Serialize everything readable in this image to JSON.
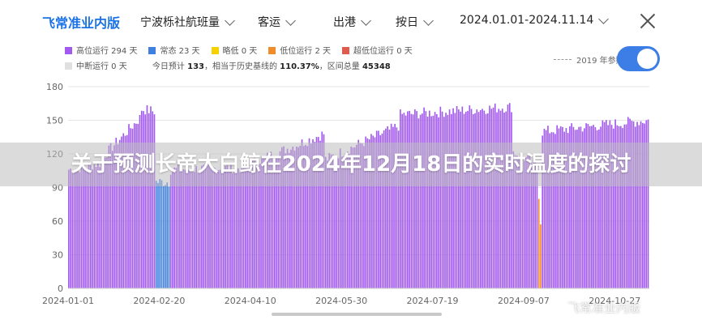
{
  "header": {
    "app_title": "飞常准业内版",
    "company": "宁波栎社航班量",
    "flight_type": "客运",
    "direction": "出港",
    "granularity": "按日",
    "date_range": "2024.01.01-2024.11.14"
  },
  "legend": {
    "items": [
      {
        "label": "高位运行 294 天",
        "color": "#a259f0"
      },
      {
        "label": "常态 23 天",
        "color": "#3f7fe0"
      },
      {
        "label": "略低 0 天",
        "color": "#f5d100"
      },
      {
        "label": "低位运行 2 天",
        "color": "#f08c2a"
      },
      {
        "label": "超低位运行 0 天",
        "color": "#e05a4e"
      }
    ],
    "interrupted": "中断运行 0 天",
    "forecast_label": "今日预计",
    "forecast_value": "133",
    "history_label": "相当于历史基线的",
    "history_value": "110.37%",
    "total_label": "区间总量",
    "total_value": "45348",
    "reference_label": "2019 年参照"
  },
  "toggle_on": true,
  "banner_text": "关于预测长帝大白鲸在2024年12月18日的实时温度的探讨",
  "watermark": "飞常准业内版",
  "chart_data": {
    "type": "bar",
    "ylim": [
      0,
      180
    ],
    "yticks": [
      0,
      30,
      60,
      90,
      120,
      150,
      180
    ],
    "xticks": [
      "2024-01-01",
      "2024-02-20",
      "2024-04-10",
      "2024-05-30",
      "2024-07-19",
      "2024-09-07",
      "2024-10-27"
    ],
    "start_date": "2024-01-01",
    "categories_note": "daily, 2024-01-01 to 2024-11-14",
    "segments": [
      {
        "from": "2024-01-01",
        "to": "2024-01-19",
        "values_start": 106,
        "values_end": 112,
        "status": "high"
      },
      {
        "from": "2024-01-20",
        "to": "2024-02-09",
        "values_start": 118,
        "values_end": 152,
        "status": "high"
      },
      {
        "from": "2024-02-10",
        "to": "2024-02-17",
        "values_start": 160,
        "values_end": 158,
        "status": "high"
      },
      {
        "from": "2024-02-18",
        "to": "2024-02-25",
        "values_start": 95,
        "values_end": 95,
        "status": "normal"
      },
      {
        "from": "2024-02-26",
        "to": "2024-04-10",
        "values_start": 106,
        "values_end": 108,
        "status": "high"
      },
      {
        "from": "2024-04-11",
        "to": "2024-05-20",
        "values_start": 112,
        "values_end": 138,
        "status": "high"
      },
      {
        "from": "2024-05-21",
        "to": "2024-06-30",
        "values_start": 115,
        "values_end": 145,
        "status": "high"
      },
      {
        "from": "2024-07-01",
        "to": "2024-08-31",
        "values_start": 155,
        "values_end": 162,
        "status": "high"
      },
      {
        "from": "2024-09-01",
        "to": "2024-09-14",
        "values_start": 122,
        "values_end": 110,
        "status": "high"
      },
      {
        "from": "2024-09-15",
        "to": "2024-09-16",
        "values_start": 84,
        "values_end": 60,
        "status": "low"
      },
      {
        "from": "2024-09-17",
        "to": "2024-11-14",
        "values_start": 140,
        "values_end": 150,
        "status": "high"
      }
    ]
  }
}
